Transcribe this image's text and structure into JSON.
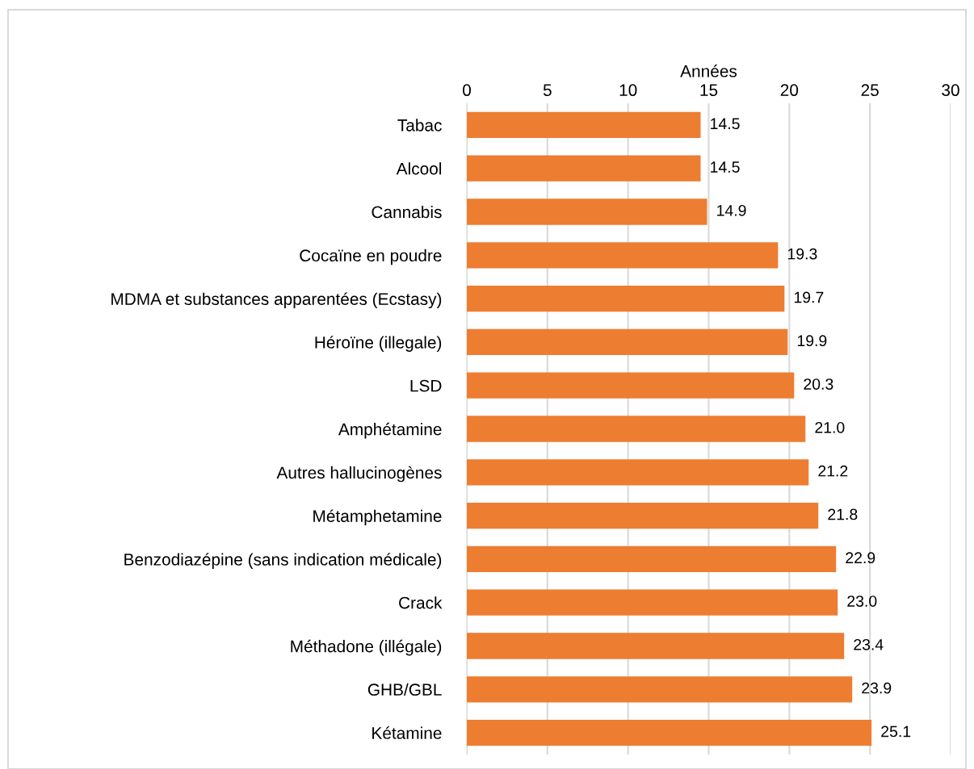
{
  "chart_data": {
    "type": "bar",
    "orientation": "horizontal",
    "xlabel": "Années",
    "categories": [
      "Tabac",
      "Alcool",
      "Cannabis",
      "Cocaïne en poudre",
      "MDMA et substances apparentées (Ecstasy)",
      "Héroïne (illegale)",
      "LSD",
      "Amphétamine",
      "Autres hallucinogènes",
      "Métamphetamine",
      "Benzodiazépine (sans indication médicale)",
      "Crack",
      "Méthadone (illégale)",
      "GHB/GBL",
      "Kétamine"
    ],
    "values": [
      14.5,
      14.5,
      14.9,
      19.3,
      19.7,
      19.9,
      20.3,
      21.0,
      21.2,
      21.8,
      22.9,
      23.0,
      23.4,
      23.9,
      25.1
    ],
    "value_labels": [
      "14.5",
      "14.5",
      "14.9",
      "19.3",
      "19.7",
      "19.9",
      "20.3",
      "21.0",
      "21.2",
      "21.8",
      "22.9",
      "23.0",
      "23.4",
      "23.9",
      "25.1"
    ],
    "color": "#ed7d31",
    "xlim": [
      0,
      30
    ],
    "xticks": [
      0,
      5,
      10,
      15,
      20,
      25,
      30
    ],
    "grid": "x"
  }
}
